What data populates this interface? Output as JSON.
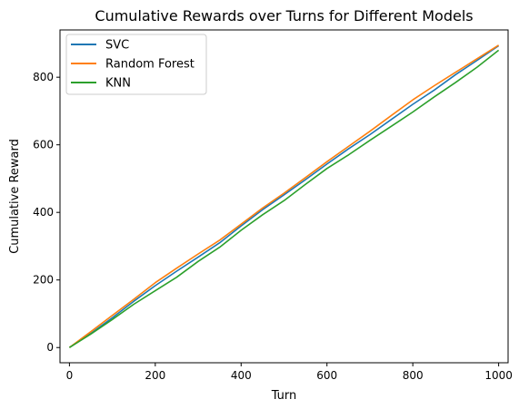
{
  "chart_data": {
    "type": "line",
    "title": "Cumulative Rewards over Turns for Different Models",
    "xlabel": "Turn",
    "ylabel": "Cumulative Reward",
    "xlim": [
      -22,
      1022
    ],
    "ylim": [
      -45,
      940
    ],
    "xticks": [
      0,
      200,
      400,
      600,
      800,
      1000
    ],
    "yticks": [
      0,
      200,
      400,
      600,
      800
    ],
    "grid": false,
    "legend_position": "top-left",
    "series": [
      {
        "name": "SVC",
        "color": "#1f77b4",
        "x": [
          0,
          50,
          100,
          150,
          200,
          250,
          300,
          350,
          400,
          450,
          500,
          550,
          600,
          650,
          700,
          750,
          800,
          850,
          900,
          950,
          1000
        ],
        "y": [
          0,
          42,
          88,
          137,
          183,
          226,
          268,
          310,
          360,
          408,
          452,
          497,
          543,
          588,
          630,
          675,
          720,
          762,
          808,
          850,
          893
        ]
      },
      {
        "name": "Random Forest",
        "color": "#ff7f0e",
        "x": [
          0,
          50,
          100,
          150,
          200,
          250,
          300,
          350,
          400,
          450,
          500,
          550,
          600,
          650,
          700,
          750,
          800,
          850,
          900,
          950,
          1000
        ],
        "y": [
          0,
          47,
          95,
          143,
          192,
          235,
          277,
          318,
          365,
          413,
          457,
          503,
          550,
          595,
          640,
          687,
          733,
          775,
          815,
          855,
          895
        ]
      },
      {
        "name": "KNN",
        "color": "#2ca02c",
        "x": [
          0,
          50,
          100,
          150,
          200,
          250,
          300,
          350,
          400,
          450,
          500,
          550,
          600,
          650,
          700,
          750,
          800,
          850,
          900,
          950,
          1000
        ],
        "y": [
          0,
          40,
          83,
          128,
          168,
          208,
          255,
          297,
          347,
          393,
          435,
          483,
          530,
          570,
          613,
          655,
          697,
          742,
          785,
          830,
          880
        ]
      }
    ]
  }
}
